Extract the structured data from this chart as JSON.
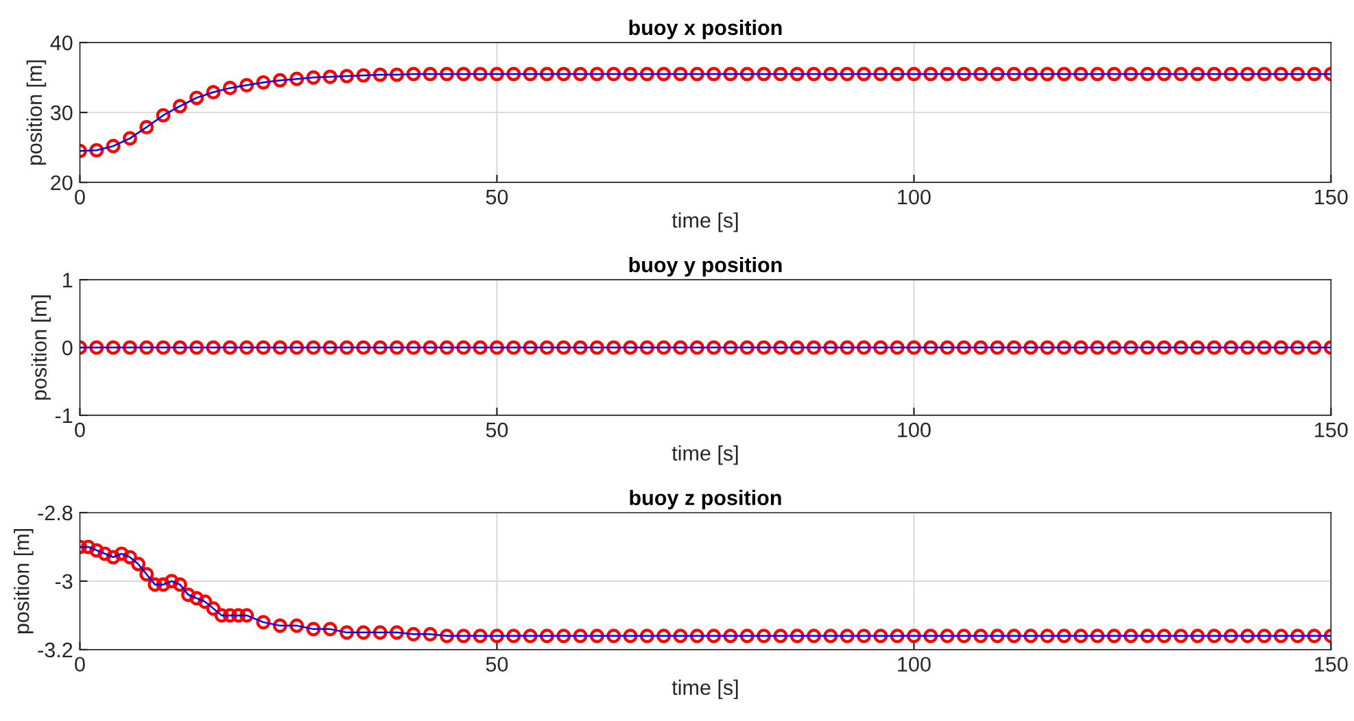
{
  "chart_data": [
    {
      "type": "line",
      "title": "buoy x position",
      "xlabel": "time [s]",
      "ylabel": "position [m]",
      "xlim": [
        0,
        150
      ],
      "xticks": [
        0,
        50,
        100,
        150
      ],
      "ylim": [
        20,
        40
      ],
      "yticks": [
        20,
        30,
        40
      ],
      "grid": true,
      "x": [
        0,
        2,
        4,
        6,
        8,
        10,
        12,
        14,
        16,
        18,
        20,
        22,
        24,
        26,
        28,
        30,
        32,
        34,
        36,
        38,
        40,
        42,
        44,
        46,
        48,
        50,
        52,
        54,
        56,
        58,
        60,
        62,
        64,
        66,
        68,
        70,
        72,
        74,
        76,
        78,
        80,
        82,
        84,
        86,
        88,
        90,
        92,
        94,
        96,
        98,
        100,
        102,
        104,
        106,
        108,
        110,
        112,
        114,
        116,
        118,
        120,
        122,
        124,
        126,
        128,
        130,
        132,
        134,
        136,
        138,
        140,
        142,
        144,
        146,
        148,
        150
      ],
      "series": [
        {
          "type": "scatter",
          "color": "#ff0000",
          "marker": "circle",
          "values": [
            24.5,
            24.6,
            25.2,
            26.3,
            27.9,
            29.6,
            30.9,
            32.1,
            32.9,
            33.5,
            33.9,
            34.3,
            34.6,
            34.8,
            35.0,
            35.1,
            35.2,
            35.3,
            35.4,
            35.4,
            35.5,
            35.5,
            35.5,
            35.5,
            35.5,
            35.5,
            35.5,
            35.5,
            35.5,
            35.5,
            35.5,
            35.5,
            35.5,
            35.5,
            35.5,
            35.5,
            35.5,
            35.5,
            35.5,
            35.5,
            35.5,
            35.5,
            35.5,
            35.5,
            35.5,
            35.5,
            35.5,
            35.5,
            35.5,
            35.5,
            35.5,
            35.5,
            35.5,
            35.5,
            35.5,
            35.5,
            35.5,
            35.5,
            35.5,
            35.5,
            35.5,
            35.5,
            35.5,
            35.5,
            35.5,
            35.5,
            35.5,
            35.5,
            35.5,
            35.5,
            35.5,
            35.5,
            35.5,
            35.5,
            35.5,
            35.5
          ]
        },
        {
          "type": "line",
          "color": "#0000ff",
          "values": [
            24.5,
            24.6,
            25.2,
            26.3,
            27.9,
            29.6,
            30.9,
            32.1,
            32.9,
            33.5,
            33.9,
            34.3,
            34.6,
            34.8,
            35.0,
            35.1,
            35.2,
            35.3,
            35.4,
            35.4,
            35.5,
            35.5,
            35.5,
            35.5,
            35.5,
            35.5,
            35.5,
            35.5,
            35.5,
            35.5,
            35.5,
            35.5,
            35.5,
            35.5,
            35.5,
            35.5,
            35.5,
            35.5,
            35.5,
            35.5,
            35.5,
            35.5,
            35.5,
            35.5,
            35.5,
            35.5,
            35.5,
            35.5,
            35.5,
            35.5,
            35.5,
            35.5,
            35.5,
            35.5,
            35.5,
            35.5,
            35.5,
            35.5,
            35.5,
            35.5,
            35.5,
            35.5,
            35.5,
            35.5,
            35.5,
            35.5,
            35.5,
            35.5,
            35.5,
            35.5,
            35.5,
            35.5,
            35.5,
            35.5,
            35.5,
            35.5
          ]
        }
      ]
    },
    {
      "type": "line",
      "title": "buoy y position",
      "xlabel": "time [s]",
      "ylabel": "position [m]",
      "xlim": [
        0,
        150
      ],
      "xticks": [
        0,
        50,
        100,
        150
      ],
      "ylim": [
        -1,
        1
      ],
      "yticks": [
        -1,
        0,
        1
      ],
      "grid": true,
      "x": [
        0,
        2,
        4,
        6,
        8,
        10,
        12,
        14,
        16,
        18,
        20,
        22,
        24,
        26,
        28,
        30,
        32,
        34,
        36,
        38,
        40,
        42,
        44,
        46,
        48,
        50,
        52,
        54,
        56,
        58,
        60,
        62,
        64,
        66,
        68,
        70,
        72,
        74,
        76,
        78,
        80,
        82,
        84,
        86,
        88,
        90,
        92,
        94,
        96,
        98,
        100,
        102,
        104,
        106,
        108,
        110,
        112,
        114,
        116,
        118,
        120,
        122,
        124,
        126,
        128,
        130,
        132,
        134,
        136,
        138,
        140,
        142,
        144,
        146,
        148,
        150
      ],
      "series": [
        {
          "type": "scatter",
          "color": "#ff0000",
          "marker": "circle",
          "values": [
            0,
            0,
            0,
            0,
            0,
            0,
            0,
            0,
            0,
            0,
            0,
            0,
            0,
            0,
            0,
            0,
            0,
            0,
            0,
            0,
            0,
            0,
            0,
            0,
            0,
            0,
            0,
            0,
            0,
            0,
            0,
            0,
            0,
            0,
            0,
            0,
            0,
            0,
            0,
            0,
            0,
            0,
            0,
            0,
            0,
            0,
            0,
            0,
            0,
            0,
            0,
            0,
            0,
            0,
            0,
            0,
            0,
            0,
            0,
            0,
            0,
            0,
            0,
            0,
            0,
            0,
            0,
            0,
            0,
            0,
            0,
            0,
            0,
            0,
            0,
            0
          ]
        },
        {
          "type": "line",
          "color": "#0000ff",
          "values": [
            0,
            0,
            0,
            0,
            0,
            0,
            0,
            0,
            0,
            0,
            0,
            0,
            0,
            0,
            0,
            0,
            0,
            0,
            0,
            0,
            0,
            0,
            0,
            0,
            0,
            0,
            0,
            0,
            0,
            0,
            0,
            0,
            0,
            0,
            0,
            0,
            0,
            0,
            0,
            0,
            0,
            0,
            0,
            0,
            0,
            0,
            0,
            0,
            0,
            0,
            0,
            0,
            0,
            0,
            0,
            0,
            0,
            0,
            0,
            0,
            0,
            0,
            0,
            0,
            0,
            0,
            0,
            0,
            0,
            0,
            0,
            0,
            0,
            0,
            0,
            0
          ]
        }
      ]
    },
    {
      "type": "line",
      "title": "buoy z position",
      "xlabel": "time [s]",
      "ylabel": "position [m]",
      "xlim": [
        0,
        150
      ],
      "xticks": [
        0,
        50,
        100,
        150
      ],
      "ylim": [
        -3.2,
        -2.8
      ],
      "yticks": [
        -3.2,
        -3,
        -2.8
      ],
      "grid": true,
      "x": [
        0,
        1,
        2,
        3,
        4,
        5,
        6,
        7,
        8,
        9,
        10,
        11,
        12,
        13,
        14,
        15,
        16,
        17,
        18,
        19,
        20,
        22,
        24,
        26,
        28,
        30,
        32,
        34,
        36,
        38,
        40,
        42,
        44,
        46,
        48,
        50,
        52,
        54,
        56,
        58,
        60,
        62,
        64,
        66,
        68,
        70,
        72,
        74,
        76,
        78,
        80,
        82,
        84,
        86,
        88,
        90,
        92,
        94,
        96,
        98,
        100,
        102,
        104,
        106,
        108,
        110,
        112,
        114,
        116,
        118,
        120,
        122,
        124,
        126,
        128,
        130,
        132,
        134,
        136,
        138,
        140,
        142,
        144,
        146,
        148,
        150
      ],
      "series": [
        {
          "type": "scatter",
          "color": "#ff0000",
          "marker": "circle",
          "values": [
            -2.9,
            -2.9,
            -2.91,
            -2.92,
            -2.93,
            -2.92,
            -2.93,
            -2.95,
            -2.98,
            -3.01,
            -3.01,
            -3.0,
            -3.01,
            -3.04,
            -3.05,
            -3.06,
            -3.08,
            -3.1,
            -3.1,
            -3.1,
            -3.1,
            -3.12,
            -3.13,
            -3.13,
            -3.14,
            -3.14,
            -3.15,
            -3.15,
            -3.15,
            -3.15,
            -3.155,
            -3.155,
            -3.16,
            -3.16,
            -3.16,
            -3.16,
            -3.16,
            -3.16,
            -3.16,
            -3.16,
            -3.16,
            -3.16,
            -3.16,
            -3.16,
            -3.16,
            -3.16,
            -3.16,
            -3.16,
            -3.16,
            -3.16,
            -3.16,
            -3.16,
            -3.16,
            -3.16,
            -3.16,
            -3.16,
            -3.16,
            -3.16,
            -3.16,
            -3.16,
            -3.16,
            -3.16,
            -3.16,
            -3.16,
            -3.16,
            -3.16,
            -3.16,
            -3.16,
            -3.16,
            -3.16,
            -3.16,
            -3.16,
            -3.16,
            -3.16,
            -3.16,
            -3.16,
            -3.16,
            -3.16,
            -3.16,
            -3.16,
            -3.16,
            -3.16,
            -3.16,
            -3.16,
            -3.16,
            -3.16
          ]
        },
        {
          "type": "line",
          "color": "#0000ff",
          "values": [
            -2.9,
            -2.9,
            -2.91,
            -2.92,
            -2.93,
            -2.92,
            -2.93,
            -2.95,
            -2.98,
            -3.01,
            -3.01,
            -3.0,
            -3.01,
            -3.04,
            -3.05,
            -3.06,
            -3.08,
            -3.1,
            -3.1,
            -3.1,
            -3.1,
            -3.12,
            -3.13,
            -3.13,
            -3.14,
            -3.14,
            -3.15,
            -3.15,
            -3.15,
            -3.15,
            -3.155,
            -3.155,
            -3.16,
            -3.16,
            -3.16,
            -3.16,
            -3.16,
            -3.16,
            -3.16,
            -3.16,
            -3.16,
            -3.16,
            -3.16,
            -3.16,
            -3.16,
            -3.16,
            -3.16,
            -3.16,
            -3.16,
            -3.16,
            -3.16,
            -3.16,
            -3.16,
            -3.16,
            -3.16,
            -3.16,
            -3.16,
            -3.16,
            -3.16,
            -3.16,
            -3.16,
            -3.16,
            -3.16,
            -3.16,
            -3.16,
            -3.16,
            -3.16,
            -3.16,
            -3.16,
            -3.16,
            -3.16,
            -3.16,
            -3.16,
            -3.16,
            -3.16,
            -3.16,
            -3.16,
            -3.16,
            -3.16,
            -3.16,
            -3.16,
            -3.16,
            -3.16,
            -3.16,
            -3.16,
            -3.16
          ]
        }
      ]
    }
  ]
}
